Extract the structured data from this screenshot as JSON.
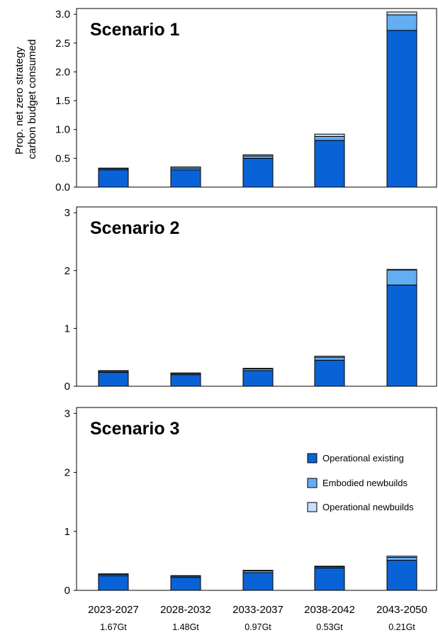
{
  "chart_data": {
    "type": "bar",
    "stacked": true,
    "ylabel": "Prop. net zero strategy carbon budget consumed",
    "ylabel_lines": [
      "Prop. net zero strategy",
      "carbon budget consumed"
    ],
    "categories": [
      "2023-2027",
      "2028-2032",
      "2033-2037",
      "2038-2042",
      "2043-2050"
    ],
    "budgets": [
      "1.67Gt",
      "1.48Gt",
      "0.97Gt",
      "0.53Gt",
      "0.21Gt"
    ],
    "legend": {
      "placement": "inside panel 3, right",
      "entries": [
        "Operational existing",
        "Embodied newbuilds",
        "Operational newbuilds"
      ]
    },
    "series_colors": [
      "#0a63d6",
      "#63aef2",
      "#c4e0fa"
    ],
    "panels": [
      {
        "title": "Scenario 1",
        "ylim": [
          0,
          3.1
        ],
        "yticks": [
          "0.0",
          "0.5",
          "1.0",
          "1.5",
          "2.0",
          "2.5",
          "3.0"
        ],
        "ytick_values": [
          0,
          0.5,
          1.0,
          1.5,
          2.0,
          2.5,
          3.0
        ],
        "series": [
          {
            "name": "Operational existing",
            "values": [
              0.3,
              0.3,
              0.5,
              0.81,
              2.72
            ]
          },
          {
            "name": "Embodied newbuilds",
            "values": [
              0.02,
              0.03,
              0.04,
              0.07,
              0.27
            ]
          },
          {
            "name": "Operational newbuilds",
            "values": [
              0.01,
              0.02,
              0.02,
              0.04,
              0.05
            ]
          }
        ]
      },
      {
        "title": "Scenario 2",
        "ylim": [
          0,
          3.1
        ],
        "yticks": [
          "0",
          "1",
          "2",
          "3"
        ],
        "ytick_values": [
          0,
          1,
          2,
          3
        ],
        "series": [
          {
            "name": "Operational existing",
            "values": [
              0.24,
              0.2,
              0.27,
              0.45,
              1.75
            ]
          },
          {
            "name": "Embodied newbuilds",
            "values": [
              0.02,
              0.02,
              0.03,
              0.05,
              0.26
            ]
          },
          {
            "name": "Operational newbuilds",
            "values": [
              0.01,
              0.01,
              0.01,
              0.02,
              0.01
            ]
          }
        ]
      },
      {
        "title": "Scenario 3",
        "ylim": [
          0,
          3.1
        ],
        "yticks": [
          "0",
          "1",
          "2",
          "3"
        ],
        "ytick_values": [
          0,
          1,
          2,
          3
        ],
        "series": [
          {
            "name": "Operational existing",
            "values": [
              0.25,
              0.22,
              0.3,
              0.38,
              0.51
            ]
          },
          {
            "name": "Embodied newbuilds",
            "values": [
              0.02,
              0.02,
              0.03,
              0.02,
              0.05
            ]
          },
          {
            "name": "Operational newbuilds",
            "values": [
              0.01,
              0.01,
              0.01,
              0.01,
              0.02
            ]
          }
        ]
      }
    ]
  }
}
